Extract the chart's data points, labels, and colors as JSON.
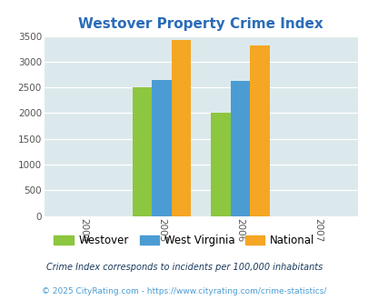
{
  "title": "Westover Property Crime Index",
  "title_color": "#2b6cb8",
  "years": [
    2004,
    2005,
    2006,
    2007
  ],
  "bar_groups": {
    "2005": {
      "Westover": 2510,
      "West Virginia": 2640,
      "National": 3420
    },
    "2006": {
      "Westover": 2000,
      "West Virginia": 2630,
      "National": 3320
    }
  },
  "colors": {
    "Westover": "#8dc63f",
    "West Virginia": "#4b9cd3",
    "National": "#f5a623"
  },
  "legend_labels": [
    "Westover",
    "West Virginia",
    "National"
  ],
  "ylim": [
    0,
    3500
  ],
  "yticks": [
    0,
    500,
    1000,
    1500,
    2000,
    2500,
    3000,
    3500
  ],
  "xlim": [
    2003.5,
    2007.5
  ],
  "xticks": [
    2004,
    2005,
    2006,
    2007
  ],
  "background_color": "#dce9ec",
  "footer_text": "Crime Index corresponds to incidents per 100,000 inhabitants",
  "footer_text2": "© 2025 CityRating.com - https://www.cityrating.com/crime-statistics/",
  "footer_color": "#555555",
  "footer2_color": "#4b9cd3",
  "bar_width": 0.25
}
